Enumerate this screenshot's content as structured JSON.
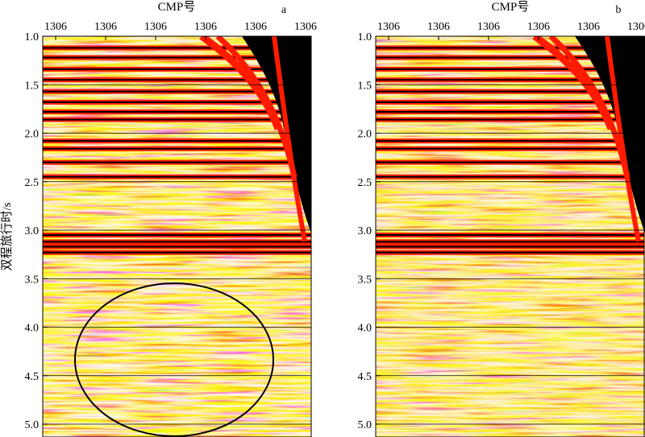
{
  "chart_data": [
    {
      "type": "heatmap",
      "panel_label": "a",
      "xlabel": "CMP号",
      "ylabel": "双程旅行时/s",
      "x_ticks": [
        "1306",
        "1306",
        "1306",
        "1306",
        "1306",
        "1306"
      ],
      "y_ticks": [
        1.0,
        1.5,
        2.0,
        2.5,
        3.0,
        3.5,
        4.0,
        4.5,
        5.0
      ],
      "ylim": [
        1.0,
        5.2
      ],
      "y_inverted": true,
      "grid": "horizontal",
      "colormap": [
        "#000000",
        "#ff1a00",
        "#ffd400",
        "#ffffff",
        "#8c8c8c"
      ],
      "strong_reflectors_s": [
        1.12,
        1.22,
        1.34,
        1.45,
        1.57,
        1.68,
        1.78,
        1.86,
        2.08,
        2.16,
        2.3,
        2.45,
        3.05,
        3.12,
        3.17,
        3.23
      ],
      "annotation": {
        "shape": "ellipse",
        "t_center_s": 4.43,
        "t_half_extent_s": 0.8
      }
    },
    {
      "type": "heatmap",
      "panel_label": "b",
      "xlabel": "CMP号",
      "x_ticks": [
        "1306",
        "1306",
        "1306",
        "1306",
        "1306",
        "1306"
      ],
      "y_ticks": [
        1.0,
        1.5,
        2.0,
        2.5,
        3.0,
        3.5,
        4.0,
        4.5,
        5.0
      ],
      "ylim": [
        1.0,
        5.2
      ],
      "y_inverted": true,
      "grid": "horizontal",
      "colormap": [
        "#000000",
        "#ff1a00",
        "#ffd400",
        "#ffffff",
        "#8c8c8c"
      ],
      "strong_reflectors_s": [
        1.12,
        1.22,
        1.34,
        1.45,
        1.57,
        1.68,
        1.78,
        1.86,
        2.08,
        2.16,
        2.3,
        2.45,
        3.05,
        3.12,
        3.17,
        3.23
      ]
    }
  ]
}
